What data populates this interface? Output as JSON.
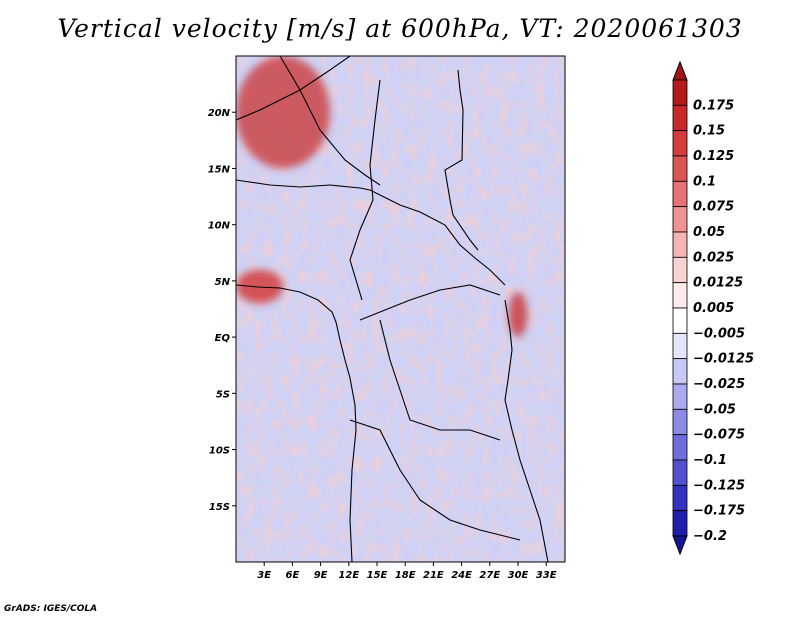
{
  "title": "Vertical velocity [m/s] at 600hPa, VT: 2020061303",
  "credit": "GrADS: IGES/COLA",
  "chart_data": {
    "type": "heatmap",
    "title": "Vertical velocity [m/s] at 600hPa, VT: 2020061303",
    "variable": "Vertical velocity",
    "units": "m/s",
    "level": "600hPa",
    "valid_time": "2020061303",
    "xlim": [
      0,
      35
    ],
    "ylim": [
      -20,
      25
    ],
    "x_ticks": [
      {
        "value": 3,
        "label": "3E"
      },
      {
        "value": 6,
        "label": "6E"
      },
      {
        "value": 9,
        "label": "9E"
      },
      {
        "value": 12,
        "label": "12E"
      },
      {
        "value": 15,
        "label": "15E"
      },
      {
        "value": 18,
        "label": "18E"
      },
      {
        "value": 21,
        "label": "21E"
      },
      {
        "value": 24,
        "label": "24E"
      },
      {
        "value": 27,
        "label": "27E"
      },
      {
        "value": 30,
        "label": "30E"
      },
      {
        "value": 33,
        "label": "33E"
      }
    ],
    "y_ticks": [
      {
        "value": 20,
        "label": "20N"
      },
      {
        "value": 15,
        "label": "15N"
      },
      {
        "value": 10,
        "label": "10N"
      },
      {
        "value": 5,
        "label": "5N"
      },
      {
        "value": 0,
        "label": "EQ"
      },
      {
        "value": -5,
        "label": "5S"
      },
      {
        "value": -10,
        "label": "10S"
      },
      {
        "value": -15,
        "label": "15S"
      }
    ],
    "colorbar": {
      "orientation": "vertical",
      "placement": "right",
      "levels": [
        {
          "label": "0.175",
          "color": "#b41a1a"
        },
        {
          "label": "0.15",
          "color": "#c82828"
        },
        {
          "label": "0.125",
          "color": "#d23c3c"
        },
        {
          "label": "0.1",
          "color": "#dc5555"
        },
        {
          "label": "0.075",
          "color": "#e67373"
        },
        {
          "label": "0.05",
          "color": "#ee9292"
        },
        {
          "label": "0.025",
          "color": "#f4b4b4"
        },
        {
          "label": "0.0125",
          "color": "#f9d2d2"
        },
        {
          "label": "0.005",
          "color": "#fdeaea"
        },
        {
          "label": "−0.005",
          "color": "#ffffff"
        },
        {
          "label": "−0.0125",
          "color": "#e6e6fa"
        },
        {
          "label": "−0.025",
          "color": "#c8c8f5"
        },
        {
          "label": "−0.05",
          "color": "#aaaaf0"
        },
        {
          "label": "−0.075",
          "color": "#8c8ce8"
        },
        {
          "label": "−0.1",
          "color": "#6e6edc"
        },
        {
          "label": "−0.125",
          "color": "#5050d0"
        },
        {
          "label": "−0.175",
          "color": "#3232be"
        },
        {
          "label": "−0.2",
          "color": "#1e1eaa"
        }
      ],
      "top_triangle_color": "#a01414",
      "bottom_triangle_color": "#141496"
    },
    "features": [
      {
        "region": "northwest Sahara near 0-10E, 15-25N",
        "sign": "strong ascent",
        "approx_value": 0.15
      },
      {
        "region": "Gulf of Guinea coast near 0-5E, 3-6N",
        "sign": "strong ascent",
        "approx_value": 0.175
      },
      {
        "region": "western Rift / Lake Victoria near 29-31E, 0-4N",
        "sign": "strong ascent",
        "approx_value": 0.15
      },
      {
        "region": "Congo Basin and South Atlantic",
        "sign": "mostly weak descent",
        "approx_value": -0.025
      }
    ]
  }
}
